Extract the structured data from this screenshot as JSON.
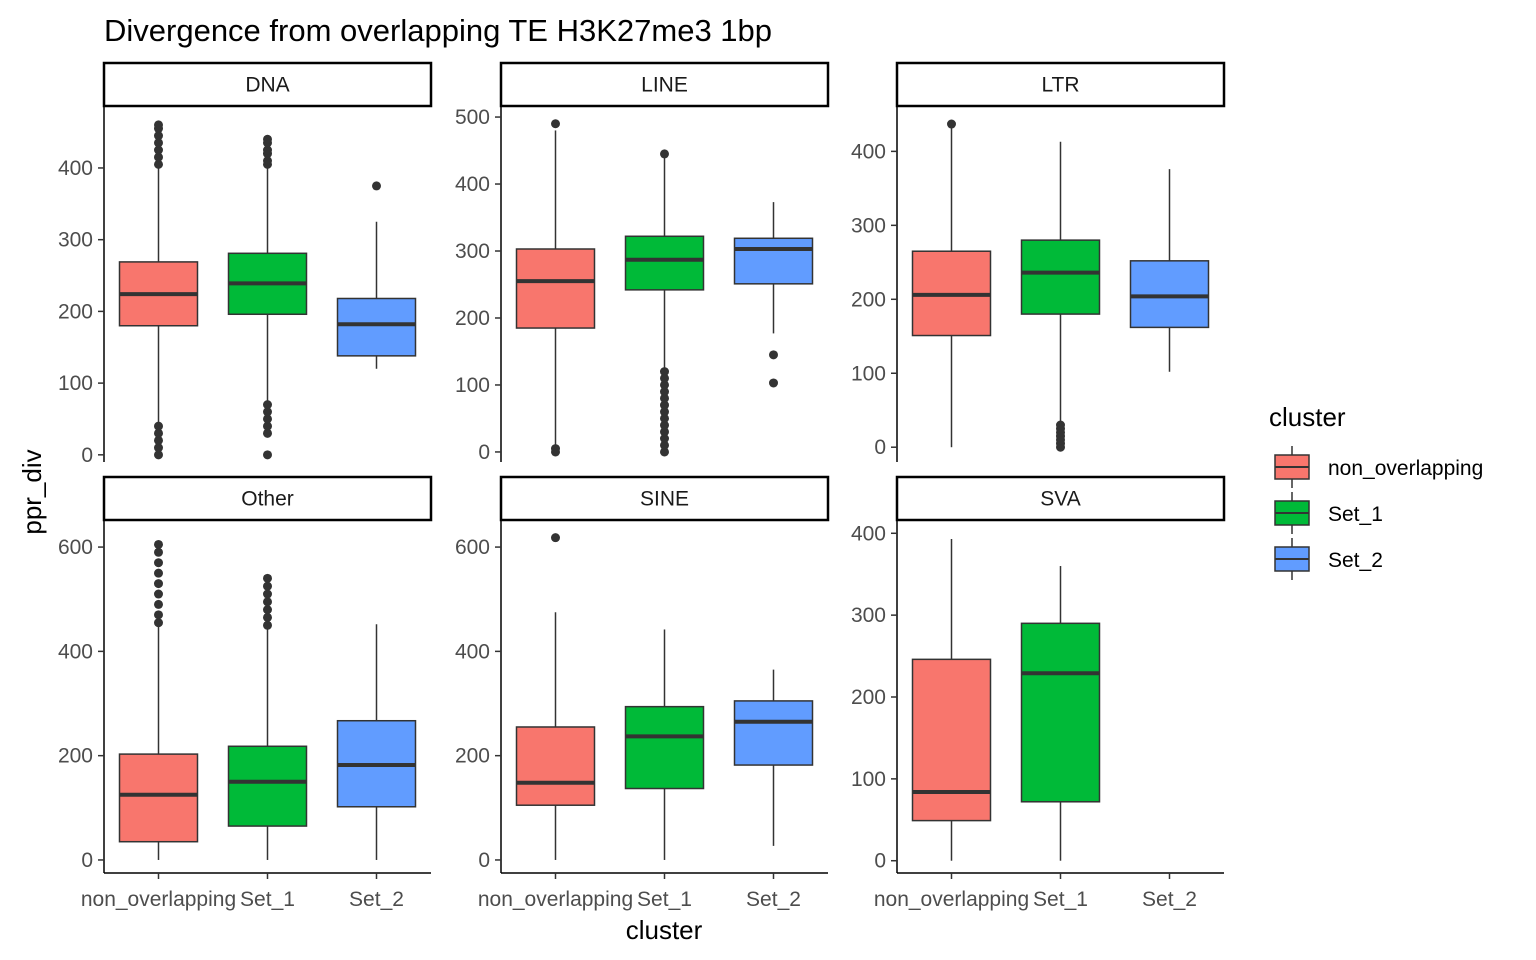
{
  "chart_data": {
    "type": "boxplot",
    "title": "Divergence from overlapping TE H3K27me3 1bp",
    "xlabel": "cluster",
    "ylabel": "ppr_div",
    "categories": [
      "non_overlapping",
      "Set_1",
      "Set_2"
    ],
    "colors": {
      "non_overlapping": "#F8766D",
      "Set_1": "#00BA38",
      "Set_2": "#619CFF"
    },
    "legend": {
      "title": "cluster",
      "position": "right",
      "entries": [
        "non_overlapping",
        "Set_1",
        "Set_2"
      ]
    },
    "grid": false,
    "panels": [
      {
        "name": "DNA",
        "ylim": [
          -10,
          485
        ],
        "yticks": [
          0,
          100,
          200,
          300,
          400
        ],
        "boxes": [
          {
            "category": "non_overlapping",
            "min": 45,
            "q1": 180,
            "median": 224,
            "q3": 269,
            "max": 400,
            "outliers_high": [
              405,
              415,
              425,
              435,
              445,
              455,
              460
            ],
            "outliers_low": [
              0,
              10,
              20,
              30,
              40
            ]
          },
          {
            "category": "Set_1",
            "min": 75,
            "q1": 196,
            "median": 239,
            "q3": 281,
            "max": 400,
            "outliers_high": [
              405,
              410,
              420,
              425,
              435,
              440
            ],
            "outliers_low": [
              0,
              30,
              40,
              50,
              60,
              70
            ]
          },
          {
            "category": "Set_2",
            "min": 120,
            "q1": 138,
            "median": 182,
            "q3": 218,
            "max": 325,
            "outliers_high": [
              375
            ],
            "outliers_low": []
          }
        ]
      },
      {
        "name": "LINE",
        "ylim": [
          -15,
          515
        ],
        "yticks": [
          0,
          100,
          200,
          300,
          400,
          500
        ],
        "boxes": [
          {
            "category": "non_overlapping",
            "min": 10,
            "q1": 185,
            "median": 255,
            "q3": 303,
            "max": 480,
            "outliers_high": [
              490
            ],
            "outliers_low": [
              0,
              5
            ]
          },
          {
            "category": "Set_1",
            "min": 125,
            "q1": 242,
            "median": 287,
            "q3": 322,
            "max": 440,
            "outliers_high": [
              445
            ],
            "outliers_low": [
              0,
              10,
              20,
              30,
              40,
              50,
              60,
              70,
              80,
              90,
              100,
              110,
              120
            ]
          },
          {
            "category": "Set_2",
            "min": 177,
            "q1": 251,
            "median": 303,
            "q3": 319,
            "max": 373,
            "outliers_high": [],
            "outliers_low": [
              103,
              145
            ]
          }
        ]
      },
      {
        "name": "LTR",
        "ylim": [
          -20,
          460
        ],
        "yticks": [
          0,
          100,
          200,
          300,
          400
        ],
        "boxes": [
          {
            "category": "non_overlapping",
            "min": 0,
            "q1": 151,
            "median": 206,
            "q3": 265,
            "max": 432,
            "outliers_high": [
              437
            ],
            "outliers_low": []
          },
          {
            "category": "Set_1",
            "min": 35,
            "q1": 180,
            "median": 236,
            "q3": 280,
            "max": 413,
            "outliers_high": [],
            "outliers_low": [
              0,
              5,
              10,
              15,
              20,
              25,
              30
            ]
          },
          {
            "category": "Set_2",
            "min": 102,
            "q1": 162,
            "median": 204,
            "q3": 252,
            "max": 376,
            "outliers_high": [],
            "outliers_low": []
          }
        ]
      },
      {
        "name": "Other",
        "ylim": [
          -25,
          650
        ],
        "yticks": [
          0,
          200,
          400,
          600
        ],
        "boxes": [
          {
            "category": "non_overlapping",
            "min": 0,
            "q1": 35,
            "median": 125,
            "q3": 203,
            "max": 450,
            "outliers_high": [
              455,
              470,
              490,
              510,
              530,
              550,
              570,
              590,
              605
            ],
            "outliers_low": []
          },
          {
            "category": "Set_1",
            "min": 0,
            "q1": 65,
            "median": 150,
            "q3": 218,
            "max": 445,
            "outliers_high": [
              450,
              465,
              480,
              495,
              510,
              525,
              540
            ],
            "outliers_low": []
          },
          {
            "category": "Set_2",
            "min": 0,
            "q1": 102,
            "median": 182,
            "q3": 267,
            "max": 452,
            "outliers_high": [],
            "outliers_low": []
          }
        ]
      },
      {
        "name": "SINE",
        "ylim": [
          -25,
          650
        ],
        "yticks": [
          0,
          200,
          400,
          600
        ],
        "boxes": [
          {
            "category": "non_overlapping",
            "min": 0,
            "q1": 105,
            "median": 148,
            "q3": 255,
            "max": 475,
            "outliers_high": [
              618
            ],
            "outliers_low": []
          },
          {
            "category": "Set_1",
            "min": 0,
            "q1": 137,
            "median": 237,
            "q3": 294,
            "max": 442,
            "outliers_high": [],
            "outliers_low": []
          },
          {
            "category": "Set_2",
            "min": 27,
            "q1": 182,
            "median": 265,
            "q3": 305,
            "max": 365,
            "outliers_high": [],
            "outliers_low": []
          }
        ]
      },
      {
        "name": "SVA",
        "ylim": [
          -15,
          415
        ],
        "yticks": [
          0,
          100,
          200,
          300,
          400
        ],
        "boxes": [
          {
            "category": "non_overlapping",
            "min": 0,
            "q1": 49,
            "median": 84,
            "q3": 246,
            "max": 393,
            "outliers_high": [],
            "outliers_low": []
          },
          {
            "category": "Set_1",
            "min": 0,
            "q1": 72,
            "median": 229,
            "q3": 290,
            "max": 360,
            "outliers_high": [],
            "outliers_low": []
          }
        ]
      }
    ]
  }
}
